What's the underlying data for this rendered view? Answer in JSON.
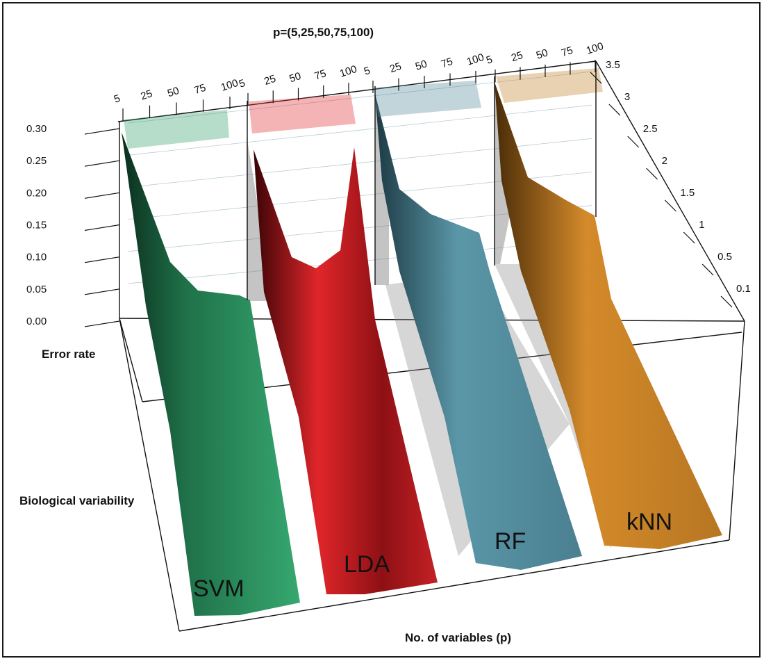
{
  "chart_data": {
    "type": "area",
    "title": "p=(5,25,50,75,100)",
    "zlabel": "Error rate",
    "ylabel": "Biological variability",
    "xlabel": "No. of variables (p)",
    "x_ticks": [
      "5",
      "25",
      "50",
      "75",
      "100"
    ],
    "z_ticks": [
      "0.00",
      "0.05",
      "0.10",
      "0.15",
      "0.20",
      "0.25",
      "0.30"
    ],
    "y_ticks": [
      "3.5",
      "3",
      "2.5",
      "2",
      "1.5",
      "1",
      "0.5",
      "0.1"
    ],
    "zlim": [
      0,
      0.3
    ],
    "grid": true,
    "series": [
      {
        "name": "SVM",
        "color": "#2e9a66",
        "x": [
          5,
          25,
          50,
          75,
          100
        ],
        "error_rate_at_top_variability": [
          0.27,
          0.11,
          0.06,
          0.045,
          0.04
        ]
      },
      {
        "name": "LDA",
        "color": "#b81a1e",
        "x": [
          5,
          25,
          50,
          75,
          100
        ],
        "error_rate_at_top_variability": [
          0.25,
          0.11,
          0.095,
          0.12,
          0.25
        ]
      },
      {
        "name": "RF",
        "color": "#4f8798",
        "x": [
          5,
          25,
          50,
          75,
          100
        ],
        "error_rate_at_top_variability": [
          0.27,
          0.18,
          0.155,
          0.135,
          0.125
        ]
      },
      {
        "name": "kNN",
        "color": "#c07d22",
        "x": [
          5,
          25,
          50,
          75,
          100
        ],
        "error_rate_at_top_variability": [
          0.29,
          0.22,
          0.18,
          0.165,
          0.155
        ]
      }
    ]
  }
}
